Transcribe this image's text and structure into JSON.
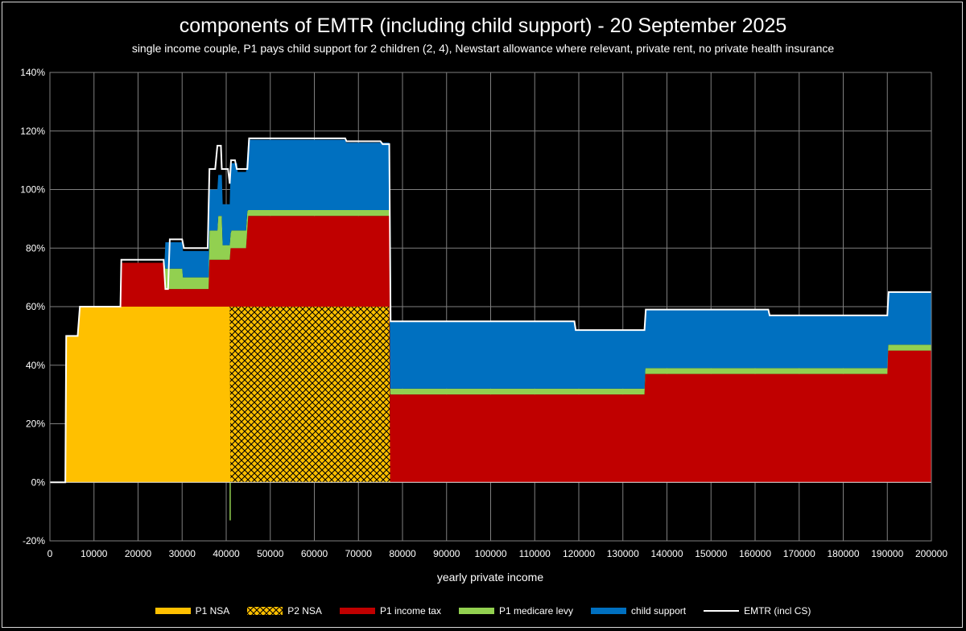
{
  "chart_data": {
    "type": "area",
    "title": "components of EMTR (including child support) - 20 September 2025",
    "subtitle": "single income couple, P1 pays child support for 2 children (2, 4), Newstart allowance where relevant, private rent, no private health insurance",
    "xlabel": "yearly private income",
    "ylabel": "",
    "xlim": [
      0,
      200000
    ],
    "ylim": [
      -20,
      140
    ],
    "x_ticks": [
      "0",
      "10000",
      "20000",
      "30000",
      "40000",
      "50000",
      "60000",
      "70000",
      "80000",
      "90000",
      "100000",
      "110000",
      "120000",
      "130000",
      "140000",
      "150000",
      "160000",
      "170000",
      "180000",
      "190000",
      "200000"
    ],
    "y_ticks": [
      "-20%",
      "0%",
      "20%",
      "40%",
      "60%",
      "80%",
      "100%",
      "120%",
      "140%"
    ],
    "colors": {
      "p1_nsa": "#FFC000",
      "p2_nsa": "#FFC000",
      "income_tax": "#C00000",
      "medicare": "#92D050",
      "child_support": "#0070C0",
      "emtr": "#FFFFFF",
      "grid": "#7f7f7f"
    },
    "series": [
      {
        "name": "P1 NSA",
        "points": [
          [
            0,
            0
          ],
          [
            3500,
            0
          ],
          [
            3700,
            50
          ],
          [
            6300,
            50
          ],
          [
            6800,
            60
          ],
          [
            40800,
            60
          ],
          [
            40800,
            0
          ],
          [
            200000,
            0
          ]
        ]
      },
      {
        "name": "P2 NSA",
        "hatched": true,
        "points": [
          [
            0,
            0
          ],
          [
            40800,
            0
          ],
          [
            40800,
            60
          ],
          [
            77000,
            60
          ],
          [
            77000,
            0
          ],
          [
            200000,
            0
          ]
        ]
      },
      {
        "name": "P1 income tax",
        "points": [
          [
            0,
            0
          ],
          [
            16000,
            0
          ],
          [
            16200,
            15
          ],
          [
            26000,
            15
          ],
          [
            26000,
            6
          ],
          [
            36000,
            6
          ],
          [
            36000,
            16
          ],
          [
            40800,
            16
          ],
          [
            41000,
            20
          ],
          [
            44500,
            20
          ],
          [
            45000,
            31
          ],
          [
            77000,
            31
          ],
          [
            77300,
            30
          ],
          [
            134900,
            30
          ],
          [
            135100,
            37
          ],
          [
            190000,
            37
          ],
          [
            190200,
            45
          ],
          [
            200000,
            45
          ]
        ]
      },
      {
        "name": "P1 medicare levy",
        "points": [
          [
            0,
            0
          ],
          [
            26000,
            0
          ],
          [
            26200,
            7
          ],
          [
            30000,
            7
          ],
          [
            30200,
            4
          ],
          [
            36000,
            4
          ],
          [
            36200,
            10
          ],
          [
            38000,
            10
          ],
          [
            38200,
            15
          ],
          [
            39000,
            15
          ],
          [
            39200,
            5
          ],
          [
            41000,
            5
          ],
          [
            41200,
            6
          ],
          [
            44800,
            6
          ],
          [
            45000,
            2
          ],
          [
            77000,
            2
          ],
          [
            77200,
            2
          ],
          [
            200000,
            2
          ]
        ]
      },
      {
        "name": "child support",
        "points": [
          [
            0,
            0
          ],
          [
            26000,
            0
          ],
          [
            26200,
            9
          ],
          [
            36000,
            9
          ],
          [
            36200,
            14
          ],
          [
            40800,
            14
          ],
          [
            41000,
            23
          ],
          [
            42500,
            23
          ],
          [
            42600,
            20
          ],
          [
            44800,
            20
          ],
          [
            45000,
            24
          ],
          [
            67000,
            24
          ],
          [
            67200,
            23
          ],
          [
            77000,
            23
          ],
          [
            77300,
            23
          ],
          [
            119000,
            23
          ],
          [
            119200,
            20
          ],
          [
            134900,
            20
          ],
          [
            135100,
            20
          ],
          [
            163000,
            20
          ],
          [
            163200,
            18
          ],
          [
            190000,
            18
          ],
          [
            190200,
            18
          ],
          [
            200000,
            18
          ]
        ]
      }
    ],
    "emtr_line": {
      "name": "EMTR (incl CS)",
      "points": [
        [
          0,
          0
        ],
        [
          3500,
          0
        ],
        [
          3700,
          50
        ],
        [
          6300,
          50
        ],
        [
          6800,
          60
        ],
        [
          16000,
          60
        ],
        [
          16200,
          76
        ],
        [
          25800,
          76
        ],
        [
          26200,
          66
        ],
        [
          26800,
          66
        ],
        [
          27200,
          83
        ],
        [
          30000,
          83
        ],
        [
          30400,
          80
        ],
        [
          35800,
          80
        ],
        [
          36200,
          107
        ],
        [
          37500,
          107
        ],
        [
          38000,
          115
        ],
        [
          38800,
          115
        ],
        [
          39000,
          107
        ],
        [
          40400,
          107
        ],
        [
          40800,
          102
        ],
        [
          41100,
          110
        ],
        [
          42000,
          110
        ],
        [
          42400,
          107
        ],
        [
          44800,
          107
        ],
        [
          45200,
          117.5
        ],
        [
          67000,
          117.5
        ],
        [
          67300,
          116.5
        ],
        [
          75000,
          116.5
        ],
        [
          75500,
          115.5
        ],
        [
          77000,
          115.5
        ],
        [
          77300,
          55
        ],
        [
          119000,
          55
        ],
        [
          119300,
          52
        ],
        [
          134900,
          52
        ],
        [
          135200,
          59
        ],
        [
          163000,
          59
        ],
        [
          163300,
          57
        ],
        [
          190000,
          57
        ],
        [
          190300,
          65
        ],
        [
          200000,
          65
        ]
      ]
    },
    "spike": {
      "x": 40900,
      "value": -13
    }
  },
  "legend": [
    {
      "label": "P1 NSA",
      "key": "p1_nsa"
    },
    {
      "label": "P2 NSA",
      "key": "p2_nsa"
    },
    {
      "label": "P1 income tax",
      "key": "income_tax"
    },
    {
      "label": "P1 medicare levy",
      "key": "medicare"
    },
    {
      "label": "child support",
      "key": "child_support"
    },
    {
      "label": "EMTR (incl CS)",
      "key": "emtr"
    }
  ]
}
